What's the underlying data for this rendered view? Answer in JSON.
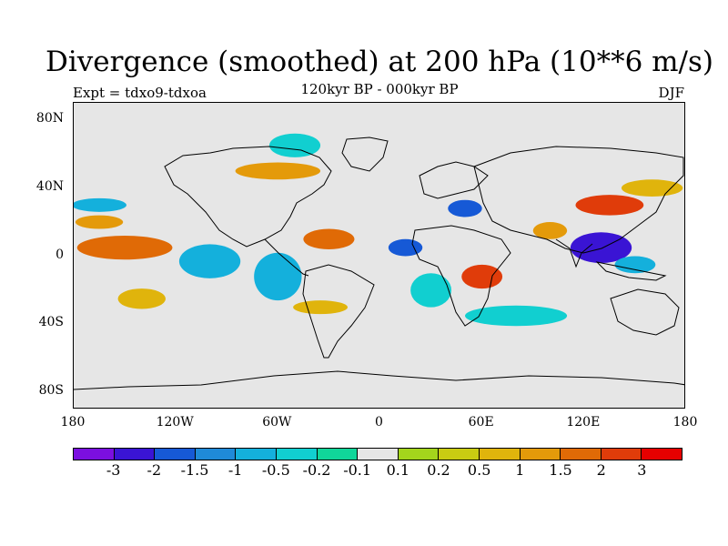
{
  "title": "Divergence (smoothed) at 200 hPa (10**6 m/s)",
  "subtitle": "120kyr BP - 000kyr BP",
  "experiment": "Expt = tdxo9-tdxoa",
  "season": "DJF",
  "chart_data": {
    "type": "heatmap",
    "projection": "equirectangular",
    "lon_range": [
      -180,
      180
    ],
    "lat_range": [
      -90,
      90
    ],
    "y_ticks": [
      {
        "lat": 80,
        "label": "80N"
      },
      {
        "lat": 40,
        "label": "40N"
      },
      {
        "lat": 0,
        "label": "0"
      },
      {
        "lat": -40,
        "label": "40S"
      },
      {
        "lat": -80,
        "label": "80S"
      }
    ],
    "x_ticks": [
      {
        "lon": -180,
        "label": "180"
      },
      {
        "lon": -120,
        "label": "120W"
      },
      {
        "lon": -60,
        "label": "60W"
      },
      {
        "lon": 0,
        "label": "0"
      },
      {
        "lon": 60,
        "label": "60E"
      },
      {
        "lon": 120,
        "label": "120E"
      },
      {
        "lon": 180,
        "label": "180"
      }
    ],
    "colorbar": {
      "levels": [
        "-3",
        "-2",
        "-1.5",
        "-1",
        "-0.5",
        "-0.2",
        "-0.1",
        "0.1",
        "0.2",
        "0.5",
        "1",
        "1.5",
        "2",
        "3"
      ],
      "colors": [
        "#7b0fe0",
        "#3a14d4",
        "#1659d6",
        "#1f8ad8",
        "#14b0dc",
        "#11cfd0",
        "#10d69a",
        "#e6e6e6",
        "#a4d51c",
        "#c9cc12",
        "#e0b40c",
        "#e49a0a",
        "#e06a06",
        "#e03c0a",
        "#e60000"
      ]
    },
    "background_color": "#e6e6e6",
    "anomaly_blobs": [
      {
        "lon": -150,
        "lat": 5,
        "rlon": 28,
        "rlat": 7,
        "value": 1.5
      },
      {
        "lon": -165,
        "lat": 20,
        "rlon": 14,
        "rlat": 4,
        "value": 1
      },
      {
        "lon": -165,
        "lat": 30,
        "rlon": 16,
        "rlat": 4,
        "value": -1
      },
      {
        "lon": -100,
        "lat": -3,
        "rlon": 18,
        "rlat": 10,
        "value": -1
      },
      {
        "lon": -60,
        "lat": -12,
        "rlon": 14,
        "rlat": 14,
        "value": -1
      },
      {
        "lon": -30,
        "lat": 10,
        "rlon": 15,
        "rlat": 6,
        "value": 1.5
      },
      {
        "lon": -35,
        "lat": -30,
        "rlon": 16,
        "rlat": 4,
        "value": 0.5
      },
      {
        "lon": 15,
        "lat": 5,
        "rlon": 10,
        "rlat": 5,
        "value": -2
      },
      {
        "lon": 30,
        "lat": -20,
        "rlon": 12,
        "rlat": 10,
        "value": -0.5
      },
      {
        "lon": 60,
        "lat": -12,
        "rlon": 12,
        "rlat": 7,
        "value": 2
      },
      {
        "lon": 50,
        "lat": 28,
        "rlon": 10,
        "rlat": 5,
        "value": -2
      },
      {
        "lon": 130,
        "lat": 5,
        "rlon": 18,
        "rlat": 9,
        "value": -3
      },
      {
        "lon": 135,
        "lat": 30,
        "rlon": 20,
        "rlat": 6,
        "value": 2
      },
      {
        "lon": 100,
        "lat": 15,
        "rlon": 10,
        "rlat": 5,
        "value": 1
      },
      {
        "lon": 150,
        "lat": -5,
        "rlon": 12,
        "rlat": 5,
        "value": -1
      },
      {
        "lon": -50,
        "lat": 65,
        "rlon": 15,
        "rlat": 7,
        "value": -0.5
      },
      {
        "lon": -60,
        "lat": 50,
        "rlon": 25,
        "rlat": 5,
        "value": 1
      },
      {
        "lon": 160,
        "lat": 40,
        "rlon": 18,
        "rlat": 5,
        "value": 0.5
      },
      {
        "lon": 80,
        "lat": -35,
        "rlon": 30,
        "rlat": 6,
        "value": -0.5
      },
      {
        "lon": -140,
        "lat": -25,
        "rlon": 14,
        "rlat": 6,
        "value": 0.5
      }
    ]
  }
}
